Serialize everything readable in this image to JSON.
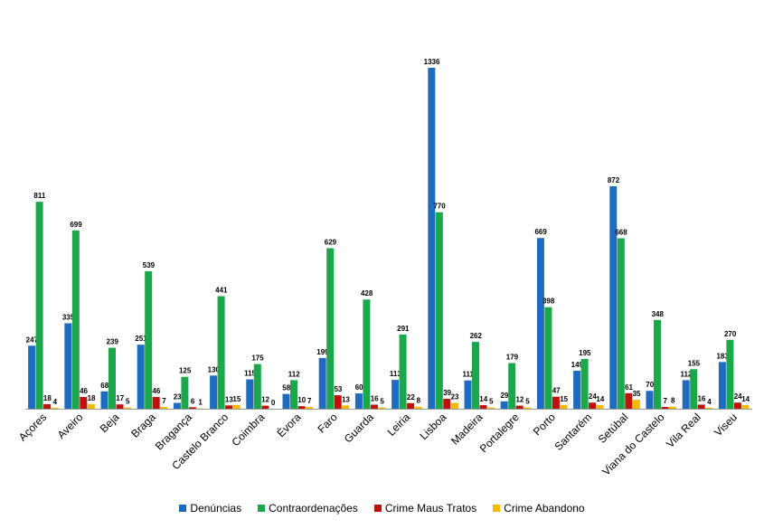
{
  "chart_data": {
    "type": "bar",
    "title": "",
    "xlabel": "",
    "ylabel": "",
    "ylim": [
      0,
      1336
    ],
    "grid": false,
    "legend_position": "bottom",
    "categories": [
      "Açores",
      "Aveiro",
      "Beja",
      "Braga",
      "Bragança",
      "Castelo Branco",
      "Coimbra",
      "Évora",
      "Faro",
      "Guarda",
      "Leiria",
      "Lisboa",
      "Madeira",
      "Portalegre",
      "Porto",
      "Santarém",
      "Setúbal",
      "Viana do Castelo",
      "Vila Real",
      "Viseu"
    ],
    "series": [
      {
        "name": "Denúncias",
        "color": "#1f6bbf",
        "values": [
          247,
          335,
          68,
          251,
          23,
          130,
          115,
          58,
          199,
          60,
          113,
          1336,
          111,
          29,
          669,
          149,
          872,
          70,
          112,
          183
        ]
      },
      {
        "name": "Contraordenações",
        "color": "#1aa84a",
        "values": [
          811,
          699,
          239,
          539,
          125,
          441,
          175,
          112,
          629,
          428,
          291,
          770,
          262,
          179,
          398,
          195,
          668,
          348,
          155,
          270
        ]
      },
      {
        "name": "Crime Maus Tratos",
        "color": "#c0120c",
        "values": [
          18,
          46,
          17,
          46,
          6,
          13,
          12,
          10,
          53,
          16,
          22,
          39,
          14,
          12,
          47,
          24,
          61,
          7,
          16,
          24
        ]
      },
      {
        "name": "Crime Abandono",
        "color": "#f6b800",
        "values": [
          4,
          18,
          5,
          7,
          1,
          15,
          0,
          7,
          13,
          5,
          8,
          23,
          5,
          5,
          15,
          14,
          35,
          8,
          4,
          14
        ]
      }
    ]
  }
}
